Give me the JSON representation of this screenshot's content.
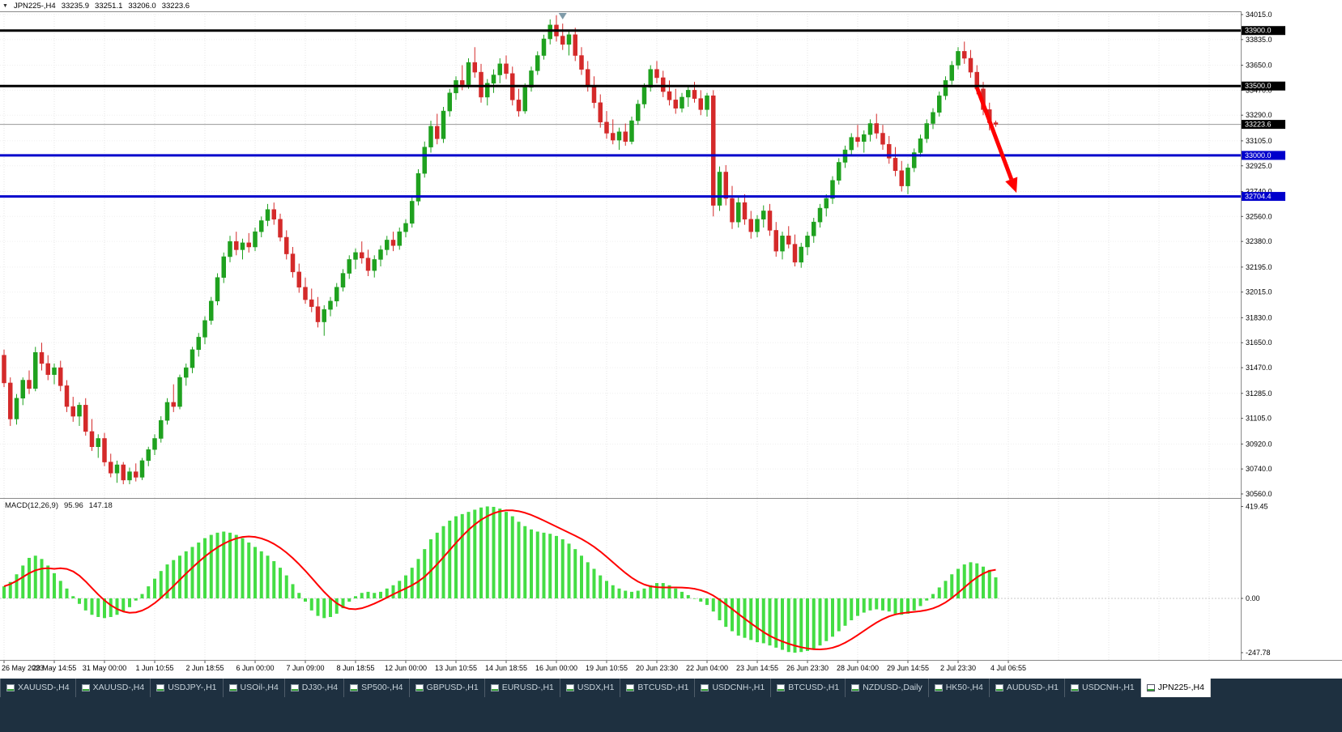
{
  "chart_header": {
    "symbol_period": "JPN225-,H4",
    "open": "33235.9",
    "high": "33251.1",
    "low": "33206.0",
    "close": "33223.6"
  },
  "macd_header": {
    "label": "MACD(12,26,9)",
    "macd_value": "95.96",
    "signal_value": "147.18"
  },
  "price_axis": {
    "ticks": [
      "34015.0",
      "33835.0",
      "33650.0",
      "33470.0",
      "33290.0",
      "33105.0",
      "32925.0",
      "32740.0",
      "32560.0",
      "32380.0",
      "32195.0",
      "32015.0",
      "31830.0",
      "31650.0",
      "31470.0",
      "31285.0",
      "31105.0",
      "30920.0",
      "30740.0",
      "30560.0"
    ],
    "badges": [
      {
        "text": "33900.0",
        "price": 33900.0,
        "bg": "#000000"
      },
      {
        "text": "33500.0",
        "price": 33500.0,
        "bg": "#000000"
      },
      {
        "text": "33223.6",
        "price": 33223.6,
        "bg": "#000000"
      },
      {
        "text": "33000.0",
        "price": 33000.0,
        "bg": "#0000CC"
      },
      {
        "text": "32704.4",
        "price": 32704.4,
        "bg": "#0000CC"
      }
    ]
  },
  "macd_axis": {
    "top": "419.45",
    "zero": "0.00",
    "bottom": "-247.78"
  },
  "time_axis": {
    "labels": [
      {
        "text": "26 May 2023",
        "bar": 0
      },
      {
        "text": "29 May 14:55",
        "bar": 8
      },
      {
        "text": "31 May 00:00",
        "bar": 16
      },
      {
        "text": "1 Jun 10:55",
        "bar": 24
      },
      {
        "text": "2 Jun 18:55",
        "bar": 32
      },
      {
        "text": "6 Jun 00:00",
        "bar": 40
      },
      {
        "text": "7 Jun 09:00",
        "bar": 48
      },
      {
        "text": "8 Jun 18:55",
        "bar": 56
      },
      {
        "text": "12 Jun 00:00",
        "bar": 64
      },
      {
        "text": "13 Jun 10:55",
        "bar": 72
      },
      {
        "text": "14 Jun 18:55",
        "bar": 80
      },
      {
        "text": "16 Jun 00:00",
        "bar": 88
      },
      {
        "text": "19 Jun 10:55",
        "bar": 96
      },
      {
        "text": "20 Jun 23:30",
        "bar": 104
      },
      {
        "text": "22 Jun 04:00",
        "bar": 112
      },
      {
        "text": "23 Jun 14:55",
        "bar": 120
      },
      {
        "text": "26 Jun 23:30",
        "bar": 128
      },
      {
        "text": "28 Jun 04:00",
        "bar": 136
      },
      {
        "text": "29 Jun 14:55",
        "bar": 144
      },
      {
        "text": "2 Jul 23:30",
        "bar": 152
      },
      {
        "text": "4 Jul 06:55",
        "bar": 160
      }
    ]
  },
  "levels": [
    {
      "price": 33900.0,
      "color": "#000000",
      "width": 3
    },
    {
      "price": 33500.0,
      "color": "#000000",
      "width": 3
    },
    {
      "price": 33000.0,
      "color": "#0000CC",
      "width": 3
    },
    {
      "price": 32704.4,
      "color": "#0000CC",
      "width": 3
    }
  ],
  "current_price_line": {
    "price": 33223.6,
    "color": "#999999"
  },
  "annotations": {
    "trend_arrow": {
      "from": {
        "bar": 155.0,
        "price": 33490
      },
      "to": {
        "bar": 161.3,
        "price": 32730
      },
      "color": "#FF0000"
    },
    "shift_marker": {
      "bar": 89
    }
  },
  "colors": {
    "up": "#1FA11F",
    "down": "#D42A2A",
    "macd_hist": "#44DD44",
    "signal": "#FF0000",
    "grid": "#e6e6e6",
    "border": "#8a8a8a",
    "arrow": "#FF0000",
    "tabbar_bg": "#1e3040",
    "active_tab_bg": "#FFFFFF"
  },
  "tabs": [
    {
      "label": "XAUUSD-,H4",
      "active": false
    },
    {
      "label": "XAUUSD-,H4",
      "active": false
    },
    {
      "label": "USDJPY-,H1",
      "active": false
    },
    {
      "label": "USOil-,H4",
      "active": false
    },
    {
      "label": "DJ30-,H4",
      "active": false
    },
    {
      "label": "SP500-,H4",
      "active": false
    },
    {
      "label": "GBPUSD-,H1",
      "active": false
    },
    {
      "label": "EURUSD-,H1",
      "active": false
    },
    {
      "label": "USDX,H1",
      "active": false
    },
    {
      "label": "BTCUSD-,H1",
      "active": false
    },
    {
      "label": "USDCNH-,H1",
      "active": false
    },
    {
      "label": "BTCUSD-,H1",
      "active": false
    },
    {
      "label": "NZDUSD-,Daily",
      "active": false
    },
    {
      "label": "HK50-,H4",
      "active": false
    },
    {
      "label": "AUDUSD-,H1",
      "active": false
    },
    {
      "label": "USDCNH-,H1",
      "active": false
    },
    {
      "label": "JPN225-,H4",
      "active": true
    }
  ],
  "chart_data": {
    "type": "candlestick",
    "symbol": "JPN225-",
    "timeframe": "H4",
    "ylim": [
      30560,
      34015
    ],
    "candles": [
      [
        31560,
        31600,
        31330,
        31360
      ],
      [
        31360,
        31400,
        31050,
        31100
      ],
      [
        31100,
        31280,
        31060,
        31250
      ],
      [
        31250,
        31400,
        31200,
        31380
      ],
      [
        31380,
        31450,
        31280,
        31320
      ],
      [
        31320,
        31620,
        31300,
        31580
      ],
      [
        31580,
        31650,
        31450,
        31500
      ],
      [
        31500,
        31560,
        31380,
        31420
      ],
      [
        31420,
        31500,
        31350,
        31470
      ],
      [
        31470,
        31520,
        31300,
        31340
      ],
      [
        31340,
        31380,
        31150,
        31190
      ],
      [
        31190,
        31260,
        31080,
        31120
      ],
      [
        31120,
        31220,
        31050,
        31200
      ],
      [
        31200,
        31250,
        30980,
        31010
      ],
      [
        31010,
        31100,
        30870,
        30900
      ],
      [
        30900,
        30990,
        30820,
        30960
      ],
      [
        30960,
        31000,
        30760,
        30790
      ],
      [
        30790,
        30850,
        30680,
        30710
      ],
      [
        30710,
        30800,
        30640,
        30770
      ],
      [
        30770,
        30790,
        30630,
        30660
      ],
      [
        30660,
        30750,
        30630,
        30720
      ],
      [
        30720,
        30780,
        30650,
        30680
      ],
      [
        30680,
        30820,
        30660,
        30800
      ],
      [
        30800,
        30900,
        30760,
        30880
      ],
      [
        30880,
        30990,
        30840,
        30960
      ],
      [
        30960,
        31120,
        30930,
        31090
      ],
      [
        31090,
        31250,
        31060,
        31220
      ],
      [
        31220,
        31350,
        31150,
        31190
      ],
      [
        31190,
        31420,
        31170,
        31400
      ],
      [
        31400,
        31500,
        31340,
        31470
      ],
      [
        31470,
        31620,
        31430,
        31600
      ],
      [
        31600,
        31720,
        31550,
        31690
      ],
      [
        31690,
        31840,
        31640,
        31810
      ],
      [
        31810,
        31980,
        31780,
        31950
      ],
      [
        31950,
        32150,
        31920,
        32120
      ],
      [
        32120,
        32300,
        32080,
        32270
      ],
      [
        32270,
        32420,
        32230,
        32380
      ],
      [
        32380,
        32450,
        32280,
        32320
      ],
      [
        32320,
        32400,
        32250,
        32370
      ],
      [
        32370,
        32440,
        32300,
        32340
      ],
      [
        32340,
        32480,
        32310,
        32450
      ],
      [
        32450,
        32560,
        32410,
        32530
      ],
      [
        32530,
        32650,
        32490,
        32610
      ],
      [
        32610,
        32660,
        32500,
        32540
      ],
      [
        32540,
        32580,
        32380,
        32410
      ],
      [
        32410,
        32460,
        32250,
        32290
      ],
      [
        32290,
        32340,
        32120,
        32160
      ],
      [
        32160,
        32220,
        32010,
        32050
      ],
      [
        32050,
        32120,
        31930,
        31960
      ],
      [
        31960,
        32040,
        31870,
        31910
      ],
      [
        31910,
        31980,
        31760,
        31800
      ],
      [
        31800,
        31920,
        31700,
        31890
      ],
      [
        31890,
        31980,
        31840,
        31950
      ],
      [
        31950,
        32080,
        31910,
        32050
      ],
      [
        32050,
        32180,
        32020,
        32150
      ],
      [
        32150,
        32280,
        32110,
        32250
      ],
      [
        32250,
        32330,
        32180,
        32300
      ],
      [
        32300,
        32380,
        32220,
        32260
      ],
      [
        32260,
        32320,
        32130,
        32170
      ],
      [
        32170,
        32280,
        32120,
        32250
      ],
      [
        32250,
        32350,
        32200,
        32320
      ],
      [
        32320,
        32420,
        32280,
        32390
      ],
      [
        32390,
        32450,
        32310,
        32350
      ],
      [
        32350,
        32480,
        32320,
        32450
      ],
      [
        32450,
        32540,
        32410,
        32510
      ],
      [
        32510,
        32700,
        32480,
        32670
      ],
      [
        32670,
        32900,
        32640,
        32870
      ],
      [
        32870,
        33100,
        32840,
        33060
      ],
      [
        33060,
        33250,
        33020,
        33210
      ],
      [
        33210,
        33300,
        33080,
        33120
      ],
      [
        33120,
        33350,
        33090,
        33320
      ],
      [
        33320,
        33480,
        33280,
        33450
      ],
      [
        33450,
        33570,
        33400,
        33540
      ],
      [
        33540,
        33650,
        33470,
        33510
      ],
      [
        33510,
        33700,
        33480,
        33670
      ],
      [
        33670,
        33780,
        33560,
        33600
      ],
      [
        33600,
        33660,
        33380,
        33420
      ],
      [
        33420,
        33550,
        33360,
        33520
      ],
      [
        33520,
        33620,
        33450,
        33580
      ],
      [
        33580,
        33700,
        33520,
        33660
      ],
      [
        33660,
        33720,
        33550,
        33590
      ],
      [
        33590,
        33640,
        33360,
        33400
      ],
      [
        33400,
        33480,
        33280,
        33320
      ],
      [
        33320,
        33520,
        33300,
        33490
      ],
      [
        33490,
        33640,
        33460,
        33610
      ],
      [
        33610,
        33750,
        33580,
        33720
      ],
      [
        33720,
        33870,
        33690,
        33840
      ],
      [
        33840,
        33980,
        33800,
        33940
      ],
      [
        33940,
        34010,
        33820,
        33860
      ],
      [
        33860,
        33950,
        33760,
        33800
      ],
      [
        33800,
        33900,
        33720,
        33870
      ],
      [
        33870,
        33920,
        33680,
        33720
      ],
      [
        33720,
        33780,
        33580,
        33620
      ],
      [
        33620,
        33680,
        33460,
        33500
      ],
      [
        33500,
        33570,
        33340,
        33380
      ],
      [
        33380,
        33440,
        33200,
        33240
      ],
      [
        33240,
        33320,
        33120,
        33160
      ],
      [
        33160,
        33260,
        33080,
        33110
      ],
      [
        33110,
        33200,
        33040,
        33170
      ],
      [
        33170,
        33230,
        33070,
        33100
      ],
      [
        33100,
        33280,
        33080,
        33250
      ],
      [
        33250,
        33400,
        33220,
        33370
      ],
      [
        33370,
        33520,
        33340,
        33490
      ],
      [
        33490,
        33650,
        33460,
        33620
      ],
      [
        33620,
        33680,
        33520,
        33560
      ],
      [
        33560,
        33610,
        33420,
        33460
      ],
      [
        33460,
        33540,
        33360,
        33400
      ],
      [
        33400,
        33480,
        33300,
        33340
      ],
      [
        33340,
        33450,
        33310,
        33420
      ],
      [
        33420,
        33500,
        33350,
        33470
      ],
      [
        33470,
        33530,
        33380,
        33410
      ],
      [
        33410,
        33470,
        33290,
        33330
      ],
      [
        33330,
        33450,
        33280,
        33430
      ],
      [
        33430,
        33470,
        32560,
        32640
      ],
      [
        32640,
        32920,
        32600,
        32880
      ],
      [
        32880,
        32930,
        32640,
        32690
      ],
      [
        32690,
        32780,
        32470,
        32520
      ],
      [
        32520,
        32700,
        32480,
        32660
      ],
      [
        32660,
        32720,
        32500,
        32540
      ],
      [
        32540,
        32600,
        32400,
        32450
      ],
      [
        32450,
        32570,
        32410,
        32540
      ],
      [
        32540,
        32640,
        32480,
        32600
      ],
      [
        32600,
        32650,
        32420,
        32460
      ],
      [
        32460,
        32520,
        32270,
        32310
      ],
      [
        32310,
        32450,
        32250,
        32420
      ],
      [
        32420,
        32490,
        32330,
        32360
      ],
      [
        32360,
        32430,
        32200,
        32230
      ],
      [
        32230,
        32370,
        32190,
        32340
      ],
      [
        32340,
        32450,
        32280,
        32420
      ],
      [
        32420,
        32550,
        32370,
        32520
      ],
      [
        32520,
        32650,
        32480,
        32620
      ],
      [
        32620,
        32720,
        32560,
        32690
      ],
      [
        32690,
        32850,
        32650,
        32820
      ],
      [
        32820,
        32980,
        32790,
        32950
      ],
      [
        32950,
        33070,
        32910,
        33040
      ],
      [
        33040,
        33160,
        33000,
        33130
      ],
      [
        33130,
        33220,
        33060,
        33100
      ],
      [
        33100,
        33180,
        33020,
        33150
      ],
      [
        33150,
        33260,
        33100,
        33230
      ],
      [
        33230,
        33300,
        33120,
        33160
      ],
      [
        33160,
        33220,
        33040,
        33080
      ],
      [
        33080,
        33140,
        32940,
        32980
      ],
      [
        32980,
        33060,
        32850,
        32890
      ],
      [
        32890,
        32960,
        32740,
        32780
      ],
      [
        32780,
        32940,
        32720,
        32910
      ],
      [
        32910,
        33050,
        32880,
        33020
      ],
      [
        33020,
        33150,
        32990,
        33120
      ],
      [
        33120,
        33260,
        33090,
        33230
      ],
      [
        33230,
        33340,
        33190,
        33310
      ],
      [
        33310,
        33460,
        33280,
        33430
      ],
      [
        33430,
        33570,
        33400,
        33540
      ],
      [
        33540,
        33680,
        33510,
        33650
      ],
      [
        33650,
        33780,
        33620,
        33750
      ],
      [
        33750,
        33820,
        33660,
        33700
      ],
      [
        33700,
        33760,
        33560,
        33600
      ],
      [
        33600,
        33650,
        33440,
        33480
      ],
      [
        33480,
        33530,
        33290,
        33330
      ],
      [
        33330,
        33380,
        33180,
        33236
      ],
      [
        33235.9,
        33251.1,
        33206.0,
        33223.6
      ]
    ],
    "macd": {
      "params": "12,26,9",
      "histogram": [
        55,
        75,
        110,
        150,
        185,
        195,
        180,
        150,
        115,
        80,
        45,
        10,
        -25,
        -55,
        -75,
        -85,
        -90,
        -85,
        -75,
        -60,
        -40,
        -10,
        20,
        55,
        90,
        125,
        155,
        175,
        195,
        215,
        235,
        255,
        275,
        290,
        300,
        305,
        300,
        290,
        275,
        255,
        235,
        215,
        195,
        170,
        140,
        105,
        65,
        25,
        -15,
        -55,
        -80,
        -90,
        -85,
        -70,
        -45,
        -15,
        10,
        25,
        30,
        25,
        30,
        45,
        60,
        80,
        105,
        140,
        180,
        225,
        270,
        300,
        330,
        355,
        375,
        385,
        395,
        405,
        415,
        420,
        418,
        410,
        395,
        375,
        350,
        330,
        315,
        305,
        300,
        295,
        285,
        270,
        250,
        225,
        195,
        165,
        135,
        105,
        80,
        60,
        45,
        35,
        30,
        35,
        45,
        60,
        70,
        70,
        60,
        45,
        30,
        15,
        0,
        -15,
        -30,
        -60,
        -100,
        -130,
        -150,
        -170,
        -180,
        -190,
        -200,
        -205,
        -215,
        -225,
        -235,
        -245,
        -248,
        -245,
        -240,
        -230,
        -215,
        -195,
        -175,
        -150,
        -125,
        -100,
        -80,
        -65,
        -55,
        -50,
        -55,
        -60,
        -70,
        -75,
        -70,
        -55,
        -35,
        -10,
        20,
        50,
        80,
        110,
        135,
        155,
        165,
        160,
        145,
        130,
        96
      ]
    }
  }
}
